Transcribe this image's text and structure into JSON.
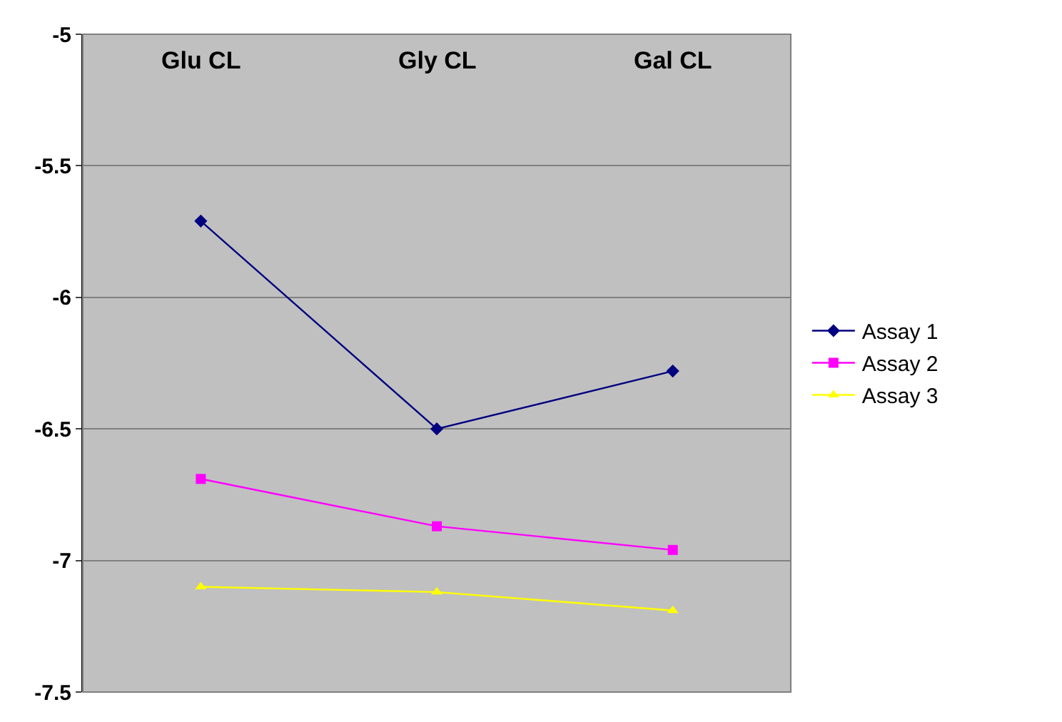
{
  "chart_data": {
    "type": "line",
    "categories": [
      "Glu CL",
      "Gly CL",
      "Gal CL"
    ],
    "series": [
      {
        "name": "Assay 1",
        "color": "#000080",
        "marker": "diamond",
        "values": [
          -5.71,
          -6.5,
          -6.28
        ]
      },
      {
        "name": "Assay 2",
        "color": "#ff00ff",
        "marker": "square",
        "values": [
          -6.69,
          -6.87,
          -6.96
        ]
      },
      {
        "name": "Assay 3",
        "color": "#ffff00",
        "marker": "triangle",
        "values": [
          -7.1,
          -7.12,
          -7.19
        ]
      }
    ],
    "ylim": [
      -7.5,
      -5
    ],
    "yticks": [
      -7.5,
      -7,
      -6.5,
      -6,
      -5.5,
      -5
    ],
    "grid": "y",
    "legend": "right"
  }
}
